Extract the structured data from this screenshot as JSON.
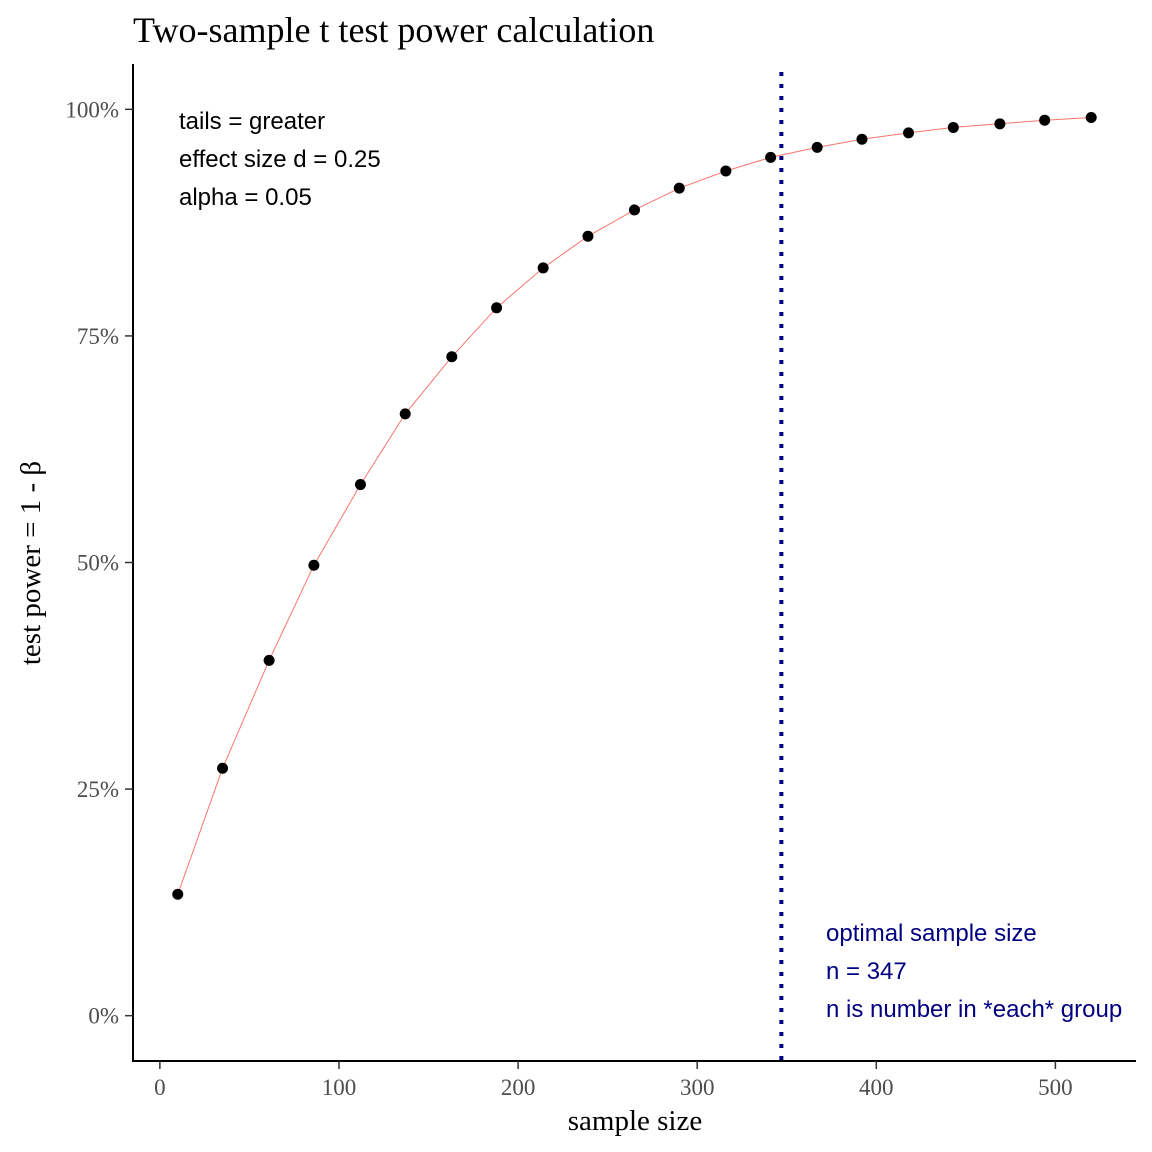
{
  "chart_data": {
    "type": "line",
    "title": "Two-sample t test power calculation",
    "xlabel": "sample size",
    "ylabel": "test power = 1 - β",
    "xlim": [
      -15,
      545
    ],
    "ylim": [
      -0.05,
      1.05
    ],
    "x_ticks": [
      0,
      100,
      200,
      300,
      400,
      500
    ],
    "x_tick_labels": [
      "0",
      "100",
      "200",
      "300",
      "400",
      "500"
    ],
    "y_ticks": [
      0,
      0.25,
      0.5,
      0.75,
      1.0
    ],
    "y_tick_labels": [
      "0%",
      "25%",
      "50%",
      "75%",
      "100%"
    ],
    "grid": false,
    "series": [
      {
        "x": [
          10,
          35,
          61,
          86,
          112,
          137,
          163,
          188,
          214,
          239,
          265,
          290,
          316,
          341,
          367,
          392,
          418,
          443,
          469,
          494,
          520
        ],
        "values": [
          0.134,
          0.273,
          0.392,
          0.497,
          0.586,
          0.664,
          0.727,
          0.781,
          0.825,
          0.86,
          0.889,
          0.913,
          0.932,
          0.947,
          0.958,
          0.967,
          0.974,
          0.98,
          0.984,
          0.988,
          0.991
        ],
        "line_color": "#F8766D",
        "point_color": "#000000"
      }
    ],
    "vline": {
      "x": 347,
      "color": "#000080",
      "style": "dotted"
    },
    "annotations": {
      "params": [
        "tails = greater",
        "effect size d = 0.25",
        "alpha = 0.05"
      ],
      "optimal": [
        "optimal sample size",
        "n = 347",
        "n is number in *each* group"
      ],
      "optimal_color": "#000080"
    }
  }
}
